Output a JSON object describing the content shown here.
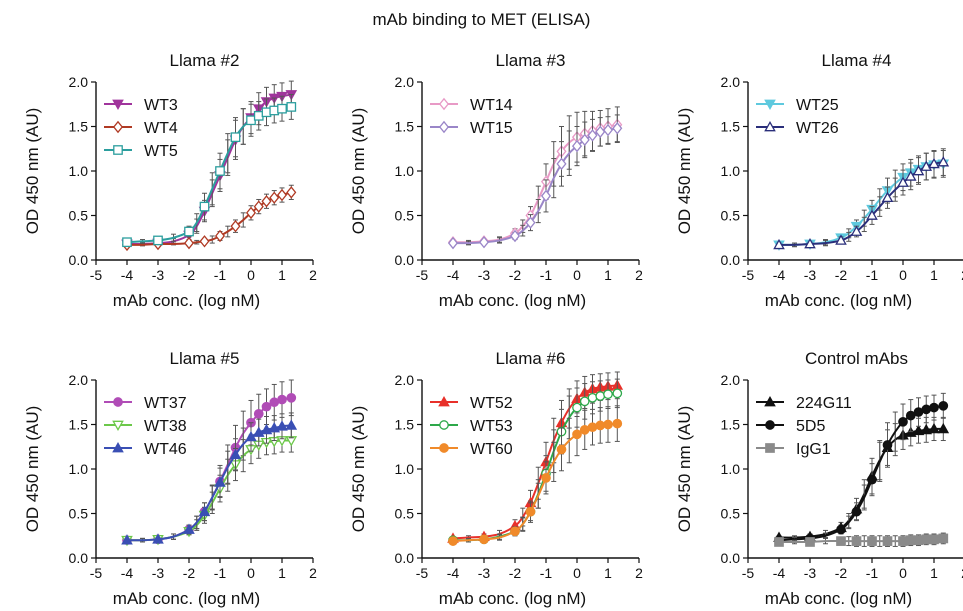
{
  "figure": {
    "title": "mAb binding to MET (ELISA)"
  },
  "chart_data": [
    {
      "type": "line",
      "title": "Llama #2",
      "xlabel": "mAb conc. (log nM)",
      "ylabel": "OD  450 nm (AU)",
      "xlim": [
        -5,
        2
      ],
      "ylim": [
        0,
        2
      ],
      "xticks": [
        -5,
        -4,
        -3,
        -2,
        -1,
        0,
        1,
        2
      ],
      "yticks": [
        "0.0",
        "0.5",
        "1.0",
        "1.5",
        "2.0"
      ],
      "legend_position": "top-left",
      "grid": false,
      "x": [
        -4,
        -3.5,
        -3,
        -2.5,
        -2,
        -1.75,
        -1.5,
        -1.25,
        -1,
        -0.75,
        -0.5,
        -0.25,
        0,
        0.25,
        0.5,
        0.75,
        1,
        1.3
      ],
      "series": [
        {
          "name": "WT3",
          "color": "#a0349c",
          "marker": "triangle-down",
          "values": [
            0.18,
            0.18,
            0.19,
            0.21,
            0.28,
            0.38,
            0.55,
            0.75,
            0.95,
            1.15,
            1.35,
            1.5,
            1.6,
            1.7,
            1.78,
            1.82,
            1.84,
            1.86
          ],
          "errors": [
            0.02,
            0.02,
            0.02,
            0.03,
            0.05,
            0.08,
            0.12,
            0.15,
            0.18,
            0.2,
            0.22,
            0.2,
            0.18,
            0.18,
            0.16,
            0.15,
            0.15,
            0.15
          ]
        },
        {
          "name": "WT4",
          "color": "#b03a24",
          "marker": "diamond-open",
          "values": [
            0.17,
            0.17,
            0.18,
            0.18,
            0.19,
            0.2,
            0.21,
            0.23,
            0.27,
            0.32,
            0.38,
            0.45,
            0.53,
            0.6,
            0.66,
            0.7,
            0.73,
            0.76
          ],
          "errors": [
            0.01,
            0.01,
            0.01,
            0.01,
            0.02,
            0.02,
            0.03,
            0.04,
            0.05,
            0.06,
            0.07,
            0.08,
            0.08,
            0.08,
            0.08,
            0.08,
            0.08,
            0.08
          ]
        },
        {
          "name": "WT5",
          "color": "#2b9e9e",
          "marker": "square-open",
          "values": [
            0.2,
            0.21,
            0.22,
            0.25,
            0.32,
            0.42,
            0.6,
            0.8,
            1.0,
            1.2,
            1.38,
            1.5,
            1.57,
            1.62,
            1.66,
            1.68,
            1.7,
            1.72
          ],
          "errors": [
            0.02,
            0.02,
            0.03,
            0.04,
            0.06,
            0.1,
            0.15,
            0.18,
            0.2,
            0.22,
            0.22,
            0.2,
            0.18,
            0.16,
            0.15,
            0.14,
            0.14,
            0.14
          ]
        }
      ]
    },
    {
      "type": "line",
      "title": "Llama #3",
      "xlabel": "mAb conc. (log nM)",
      "ylabel": "OD  450 nm (AU)",
      "xlim": [
        -5,
        2
      ],
      "ylim": [
        0,
        2
      ],
      "xticks": [
        -5,
        -4,
        -3,
        -2,
        -1,
        0,
        1,
        2
      ],
      "yticks": [
        "0.0",
        "0.5",
        "1.0",
        "1.5",
        "2.0"
      ],
      "legend_position": "top-left",
      "grid": false,
      "x": [
        -4,
        -3.5,
        -3,
        -2.5,
        -2,
        -1.75,
        -1.5,
        -1.25,
        -1,
        -0.75,
        -0.5,
        -0.25,
        0,
        0.25,
        0.5,
        0.75,
        1,
        1.3
      ],
      "series": [
        {
          "name": "WT14",
          "color": "#e89ac6",
          "marker": "diamond-open",
          "values": [
            0.2,
            0.2,
            0.21,
            0.23,
            0.3,
            0.38,
            0.5,
            0.68,
            0.88,
            1.08,
            1.22,
            1.32,
            1.38,
            1.42,
            1.45,
            1.48,
            1.5,
            1.52
          ],
          "errors": [
            0.02,
            0.02,
            0.02,
            0.03,
            0.05,
            0.07,
            0.1,
            0.15,
            0.2,
            0.25,
            0.28,
            0.3,
            0.28,
            0.25,
            0.22,
            0.2,
            0.2,
            0.2
          ]
        },
        {
          "name": "WT15",
          "color": "#9a86c8",
          "marker": "diamond-open",
          "values": [
            0.19,
            0.19,
            0.2,
            0.22,
            0.27,
            0.33,
            0.42,
            0.55,
            0.72,
            0.92,
            1.08,
            1.2,
            1.28,
            1.35,
            1.4,
            1.44,
            1.46,
            1.48
          ],
          "errors": [
            0.02,
            0.02,
            0.02,
            0.03,
            0.04,
            0.06,
            0.09,
            0.13,
            0.18,
            0.22,
            0.25,
            0.25,
            0.22,
            0.2,
            0.18,
            0.16,
            0.15,
            0.15
          ]
        }
      ]
    },
    {
      "type": "line",
      "title": "Llama #4",
      "xlabel": "mAb conc. (log nM)",
      "ylabel": "OD  450 nm (AU)",
      "xlim": [
        -5,
        2
      ],
      "ylim": [
        0,
        2
      ],
      "xticks": [
        -5,
        -4,
        -3,
        -2,
        -1,
        0,
        1,
        2
      ],
      "yticks": [
        "0.0",
        "0.5",
        "1.0",
        "1.5",
        "2.0"
      ],
      "legend_position": "top-left",
      "grid": false,
      "x": [
        -4,
        -3.5,
        -3,
        -2.5,
        -2,
        -1.75,
        -1.5,
        -1.25,
        -1,
        -0.75,
        -0.5,
        -0.25,
        0,
        0.25,
        0.5,
        0.75,
        1,
        1.3
      ],
      "series": [
        {
          "name": "WT25",
          "color": "#5ec9de",
          "marker": "triangle-down",
          "values": [
            0.17,
            0.17,
            0.18,
            0.2,
            0.25,
            0.3,
            0.38,
            0.47,
            0.57,
            0.68,
            0.78,
            0.86,
            0.93,
            0.98,
            1.02,
            1.05,
            1.07,
            1.08
          ],
          "errors": [
            0.02,
            0.02,
            0.02,
            0.03,
            0.04,
            0.05,
            0.07,
            0.09,
            0.1,
            0.12,
            0.14,
            0.15,
            0.15,
            0.15,
            0.15,
            0.15,
            0.15,
            0.15
          ]
        },
        {
          "name": "WT26",
          "color": "#2a2e7a",
          "marker": "triangle-up-open",
          "values": [
            0.17,
            0.17,
            0.18,
            0.19,
            0.22,
            0.26,
            0.32,
            0.4,
            0.5,
            0.6,
            0.7,
            0.79,
            0.87,
            0.94,
            1.0,
            1.05,
            1.08,
            1.1
          ],
          "errors": [
            0.02,
            0.02,
            0.02,
            0.03,
            0.04,
            0.05,
            0.06,
            0.08,
            0.1,
            0.11,
            0.12,
            0.13,
            0.14,
            0.15,
            0.15,
            0.15,
            0.15,
            0.15
          ]
        }
      ]
    },
    {
      "type": "line",
      "title": "Llama #5",
      "xlabel": "mAb conc. (log nM)",
      "ylabel": "OD  450 nm (AU)",
      "xlim": [
        -5,
        2
      ],
      "ylim": [
        0,
        2
      ],
      "xticks": [
        -5,
        -4,
        -3,
        -2,
        -1,
        0,
        1,
        2
      ],
      "yticks": [
        "0.0",
        "0.5",
        "1.0",
        "1.5",
        "2.0"
      ],
      "legend_position": "top-left",
      "grid": false,
      "x": [
        -4,
        -3.5,
        -3,
        -2.5,
        -2,
        -1.75,
        -1.5,
        -1.25,
        -1,
        -0.75,
        -0.5,
        -0.25,
        0,
        0.25,
        0.5,
        0.75,
        1,
        1.3
      ],
      "series": [
        {
          "name": "WT37",
          "color": "#b04cb6",
          "marker": "circle",
          "values": [
            0.2,
            0.2,
            0.21,
            0.24,
            0.32,
            0.4,
            0.52,
            0.68,
            0.86,
            1.05,
            1.24,
            1.4,
            1.52,
            1.62,
            1.7,
            1.75,
            1.78,
            1.8
          ],
          "errors": [
            0.02,
            0.02,
            0.02,
            0.03,
            0.05,
            0.07,
            0.1,
            0.14,
            0.18,
            0.22,
            0.25,
            0.25,
            0.25,
            0.22,
            0.2,
            0.2,
            0.2,
            0.2
          ]
        },
        {
          "name": "WT38",
          "color": "#6cc84a",
          "marker": "triangle-down-open",
          "values": [
            0.2,
            0.2,
            0.21,
            0.24,
            0.3,
            0.37,
            0.48,
            0.62,
            0.78,
            0.93,
            1.05,
            1.15,
            1.22,
            1.27,
            1.3,
            1.31,
            1.32,
            1.32
          ],
          "errors": [
            0.02,
            0.02,
            0.02,
            0.03,
            0.04,
            0.06,
            0.09,
            0.12,
            0.15,
            0.18,
            0.18,
            0.18,
            0.16,
            0.15,
            0.14,
            0.14,
            0.13,
            0.13
          ]
        },
        {
          "name": "WT46",
          "color": "#3a4fb4",
          "marker": "triangle-up",
          "values": [
            0.2,
            0.2,
            0.21,
            0.24,
            0.32,
            0.4,
            0.52,
            0.68,
            0.85,
            1.02,
            1.16,
            1.28,
            1.36,
            1.41,
            1.44,
            1.46,
            1.48,
            1.49
          ],
          "errors": [
            0.02,
            0.02,
            0.02,
            0.03,
            0.05,
            0.07,
            0.1,
            0.13,
            0.16,
            0.18,
            0.18,
            0.18,
            0.16,
            0.15,
            0.15,
            0.14,
            0.14,
            0.14
          ]
        }
      ]
    },
    {
      "type": "line",
      "title": "Llama #6",
      "xlabel": "mAb conc. (log nM)",
      "ylabel": "OD  450 nm (AU)",
      "xlim": [
        -5,
        2
      ],
      "ylim": [
        0,
        2
      ],
      "xticks": [
        -5,
        -4,
        -3,
        -2,
        -1,
        0,
        1,
        2
      ],
      "yticks": [
        "0.0",
        "0.5",
        "1.0",
        "1.5",
        "2.0"
      ],
      "legend_position": "top-left",
      "grid": false,
      "x": [
        -4,
        -3.5,
        -3,
        -2.5,
        -2,
        -1.75,
        -1.5,
        -1.25,
        -1,
        -0.75,
        -0.5,
        -0.25,
        0,
        0.25,
        0.5,
        0.75,
        1,
        1.3
      ],
      "series": [
        {
          "name": "WT52",
          "color": "#e8302a",
          "marker": "triangle-up",
          "values": [
            0.22,
            0.23,
            0.24,
            0.27,
            0.36,
            0.46,
            0.62,
            0.84,
            1.08,
            1.32,
            1.52,
            1.68,
            1.79,
            1.86,
            1.9,
            1.92,
            1.93,
            1.94
          ],
          "errors": [
            0.02,
            0.02,
            0.03,
            0.04,
            0.07,
            0.1,
            0.14,
            0.18,
            0.22,
            0.25,
            0.25,
            0.22,
            0.2,
            0.18,
            0.16,
            0.15,
            0.15,
            0.15
          ]
        },
        {
          "name": "WT53",
          "color": "#2da84a",
          "marker": "circle-open",
          "values": [
            0.2,
            0.2,
            0.21,
            0.24,
            0.3,
            0.38,
            0.52,
            0.72,
            0.95,
            1.2,
            1.42,
            1.58,
            1.69,
            1.76,
            1.8,
            1.82,
            1.84,
            1.85
          ],
          "errors": [
            0.02,
            0.02,
            0.02,
            0.03,
            0.05,
            0.08,
            0.12,
            0.16,
            0.2,
            0.24,
            0.25,
            0.24,
            0.22,
            0.2,
            0.18,
            0.17,
            0.16,
            0.16
          ]
        },
        {
          "name": "WT60",
          "color": "#f08a2a",
          "marker": "circle",
          "values": [
            0.19,
            0.2,
            0.21,
            0.23,
            0.3,
            0.38,
            0.52,
            0.7,
            0.9,
            1.08,
            1.22,
            1.32,
            1.39,
            1.44,
            1.47,
            1.49,
            1.5,
            1.51
          ],
          "errors": [
            0.02,
            0.02,
            0.02,
            0.03,
            0.05,
            0.07,
            0.1,
            0.14,
            0.18,
            0.22,
            0.24,
            0.25,
            0.24,
            0.22,
            0.2,
            0.2,
            0.2,
            0.2
          ]
        }
      ]
    },
    {
      "type": "line",
      "title": "Control mAbs",
      "xlabel": "mAb conc. (log nM)",
      "ylabel": "OD  450 nm (AU)",
      "xlim": [
        -5,
        2
      ],
      "ylim": [
        0,
        2
      ],
      "xticks": [
        -5,
        -4,
        -3,
        -2,
        -1,
        0,
        1,
        2
      ],
      "yticks": [
        "0.0",
        "0.5",
        "1.0",
        "1.5",
        "2.0"
      ],
      "legend_position": "top-left",
      "grid": false,
      "x": [
        -4,
        -3.5,
        -3,
        -2.5,
        -2,
        -1.75,
        -1.5,
        -1.25,
        -1,
        -0.75,
        -0.5,
        -0.25,
        0,
        0.25,
        0.5,
        0.75,
        1,
        1.3
      ],
      "series": [
        {
          "name": "224G11",
          "color": "#111111",
          "marker": "triangle-up",
          "values": [
            0.23,
            0.23,
            0.24,
            0.27,
            0.34,
            0.42,
            0.55,
            0.72,
            0.92,
            1.1,
            1.24,
            1.33,
            1.38,
            1.41,
            1.43,
            1.44,
            1.45,
            1.45
          ],
          "errors": [
            0.02,
            0.02,
            0.03,
            0.04,
            0.06,
            0.08,
            0.12,
            0.16,
            0.2,
            0.22,
            0.2,
            0.18,
            0.16,
            0.15,
            0.14,
            0.14,
            0.13,
            0.13
          ]
        },
        {
          "name": "5D5",
          "color": "#111111",
          "marker": "circle",
          "values": [
            0.2,
            0.21,
            0.22,
            0.25,
            0.32,
            0.4,
            0.52,
            0.68,
            0.88,
            1.08,
            1.27,
            1.42,
            1.53,
            1.6,
            1.64,
            1.67,
            1.69,
            1.71
          ],
          "errors": [
            0.02,
            0.02,
            0.02,
            0.03,
            0.05,
            0.07,
            0.1,
            0.14,
            0.18,
            0.22,
            0.25,
            0.22,
            0.2,
            0.18,
            0.16,
            0.15,
            0.14,
            0.14
          ]
        },
        {
          "name": "IgG1",
          "color": "#8a8a8a",
          "marker": "square",
          "values": [
            0.18,
            0.18,
            0.18,
            0.19,
            0.19,
            0.19,
            0.19,
            0.19,
            0.19,
            0.19,
            0.19,
            0.19,
            0.19,
            0.2,
            0.2,
            0.21,
            0.21,
            0.22
          ],
          "errors": [
            0.02,
            0.02,
            0.02,
            0.03,
            0.04,
            0.05,
            0.06,
            0.06,
            0.06,
            0.06,
            0.06,
            0.06,
            0.06,
            0.06,
            0.06,
            0.06,
            0.06,
            0.06
          ]
        }
      ]
    }
  ]
}
